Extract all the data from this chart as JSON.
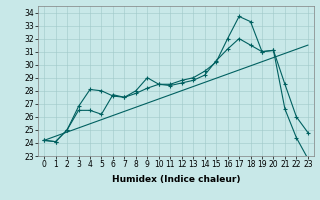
{
  "xlabel": "Humidex (Indice chaleur)",
  "bg_color": "#c8e8e8",
  "line_color": "#006060",
  "xlim": [
    -0.5,
    23.5
  ],
  "ylim": [
    23,
    34.5
  ],
  "yticks": [
    23,
    24,
    25,
    26,
    27,
    28,
    29,
    30,
    31,
    32,
    33,
    34
  ],
  "xticks": [
    0,
    1,
    2,
    3,
    4,
    5,
    6,
    7,
    8,
    9,
    10,
    11,
    12,
    13,
    14,
    15,
    16,
    17,
    18,
    19,
    20,
    21,
    22,
    23
  ],
  "line1_x": [
    0,
    1,
    2,
    3,
    4,
    5,
    6,
    7,
    8,
    9,
    10,
    11,
    12,
    13,
    14,
    15,
    16,
    17,
    18,
    19,
    20,
    21,
    22,
    23
  ],
  "line1_y": [
    24.2,
    24.1,
    25.0,
    26.8,
    28.1,
    28.0,
    27.6,
    27.5,
    28.0,
    29.0,
    28.5,
    28.5,
    28.8,
    29.0,
    29.5,
    30.2,
    32.0,
    33.7,
    33.3,
    31.0,
    31.1,
    26.6,
    24.4,
    22.8
  ],
  "line2_x": [
    0,
    1,
    2,
    3,
    4,
    5,
    6,
    7,
    8,
    9,
    10,
    11,
    12,
    13,
    14,
    15,
    16,
    17,
    18,
    19,
    20,
    21,
    22,
    23
  ],
  "line2_y": [
    24.2,
    24.1,
    25.0,
    26.5,
    26.5,
    26.2,
    27.7,
    27.5,
    27.8,
    28.2,
    28.5,
    28.4,
    28.6,
    28.8,
    29.2,
    30.3,
    31.2,
    32.0,
    31.5,
    31.0,
    31.1,
    28.5,
    26.0,
    24.8
  ],
  "line3_x": [
    0,
    23
  ],
  "line3_y": [
    24.2,
    31.5
  ],
  "grid_color": "#a0c8c8",
  "marker": "+",
  "tick_fontsize": 5.5,
  "xlabel_fontsize": 6.5
}
